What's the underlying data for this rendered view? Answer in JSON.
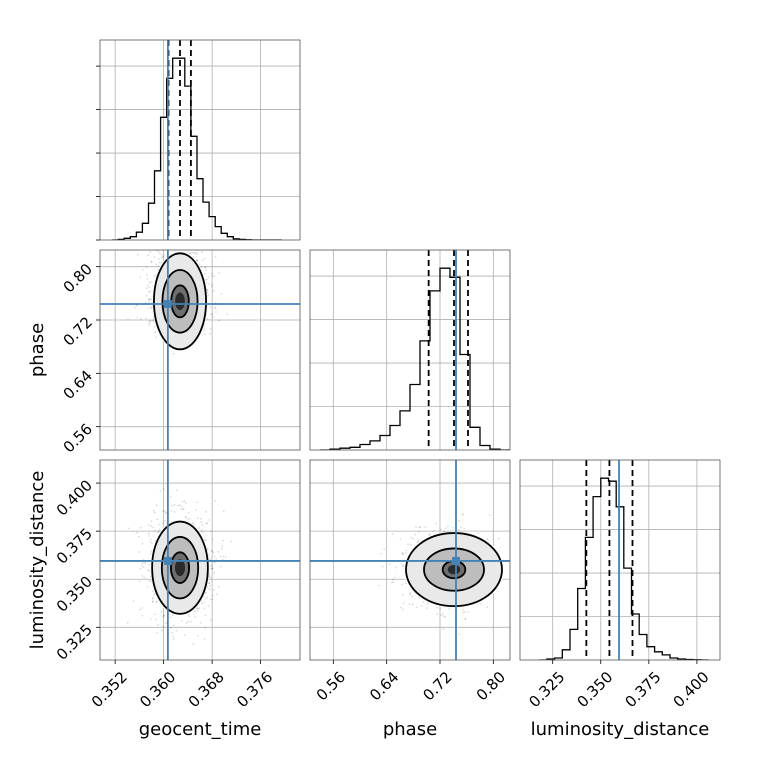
{
  "chart_data": {
    "type": "corner",
    "parameters": [
      {
        "name": "geocent_time",
        "xlabel": "geocent_time",
        "range": [
          0.3495,
          0.3825
        ],
        "ticks": [
          0.352,
          0.36,
          0.368,
          0.376
        ],
        "tick_labels": [
          "0.352",
          "0.360",
          "0.368",
          "0.376"
        ],
        "truth": 0.3607,
        "quantiles": [
          0.3608,
          0.3627,
          0.3645
        ],
        "histogram": {
          "edges": [
            0.3515,
            0.3525,
            0.3535,
            0.3545,
            0.3555,
            0.3565,
            0.3575,
            0.3585,
            0.3595,
            0.3605,
            0.3615,
            0.3625,
            0.3635,
            0.3645,
            0.3655,
            0.3665,
            0.3675,
            0.3685,
            0.3695,
            0.3705,
            0.3715,
            0.3725,
            0.3735,
            0.3745,
            0.3755,
            0.3765,
            0.3775,
            0.3785,
            0.3795
          ],
          "counts": [
            0,
            0.5,
            1.5,
            3,
            7,
            15,
            33,
            62,
            110,
            145,
            163,
            163,
            138,
            93,
            55,
            34,
            21,
            12,
            6,
            3,
            1,
            0.5,
            0.2,
            0,
            0,
            0,
            0,
            0
          ]
        }
      },
      {
        "name": "phase",
        "xlabel": "phase",
        "ylabel": "phase",
        "range": [
          0.525,
          0.825
        ],
        "ticks": [
          0.56,
          0.64,
          0.72,
          0.8
        ],
        "tick_labels": [
          "0.56",
          "0.64",
          "0.72",
          "0.80"
        ],
        "truth": 0.744,
        "quantiles": [
          0.703,
          0.741,
          0.762
        ],
        "histogram": {
          "edges": [
            0.54,
            0.555,
            0.57,
            0.585,
            0.6,
            0.615,
            0.63,
            0.645,
            0.66,
            0.675,
            0.69,
            0.705,
            0.72,
            0.735,
            0.75,
            0.765,
            0.78,
            0.795,
            0.81,
            0.825
          ],
          "counts": [
            0,
            1,
            2,
            3,
            6,
            10,
            16,
            27,
            43,
            72,
            120,
            175,
            200,
            190,
            105,
            25,
            5,
            1,
            0
          ]
        }
      },
      {
        "name": "luminosity_distance",
        "xlabel": "luminosity_distance",
        "ylabel": "luminosity_distance",
        "range": [
          0.308,
          0.412
        ],
        "ticks": [
          0.325,
          0.35,
          0.375,
          0.4
        ],
        "tick_labels": [
          "0.325",
          "0.350",
          "0.375",
          "0.400"
        ],
        "truth": 0.3595,
        "quantiles": [
          0.3425,
          0.3545,
          0.3665
        ],
        "histogram": {
          "edges": [
            0.318,
            0.322,
            0.326,
            0.33,
            0.334,
            0.338,
            0.342,
            0.346,
            0.35,
            0.354,
            0.358,
            0.362,
            0.366,
            0.37,
            0.374,
            0.378,
            0.382,
            0.386,
            0.39,
            0.394,
            0.398,
            0.402,
            0.406
          ],
          "counts": [
            0,
            1,
            2,
            10,
            30,
            70,
            120,
            160,
            178,
            175,
            150,
            90,
            45,
            25,
            13,
            8,
            5,
            2,
            1,
            0.5,
            0.2,
            0
          ]
        }
      }
    ],
    "panels_2d": [
      {
        "x": "geocent_time",
        "y": "phase",
        "center": [
          0.3627,
          0.748
        ],
        "contour_radii": [
          [
            0.00145,
            0.024
          ],
          [
            0.0029,
            0.047
          ],
          [
            0.0043,
            0.072
          ]
        ]
      },
      {
        "x": "geocent_time",
        "y": "luminosity_distance",
        "center": [
          0.3627,
          0.356
        ],
        "contour_radii": [
          [
            0.0015,
            0.008
          ],
          [
            0.003,
            0.016
          ],
          [
            0.0046,
            0.024
          ]
        ]
      },
      {
        "x": "phase",
        "y": "luminosity_distance",
        "center": [
          0.741,
          0.355
        ],
        "contour_radii": [
          [
            0.017,
            0.0045
          ],
          [
            0.045,
            0.011
          ],
          [
            0.072,
            0.019
          ]
        ]
      }
    ],
    "truth_color": "#4682b4",
    "grid": true
  }
}
